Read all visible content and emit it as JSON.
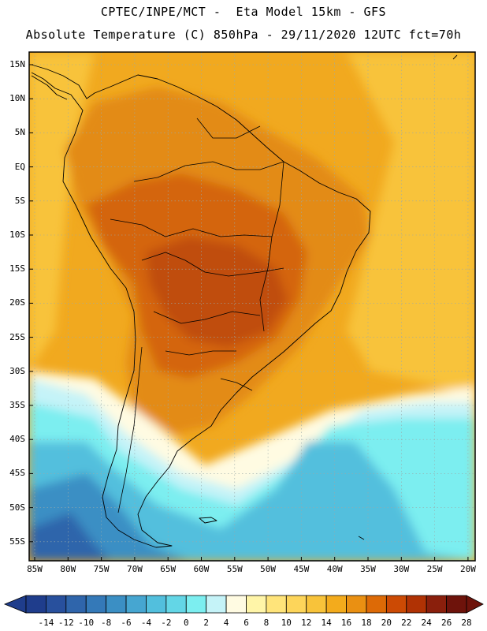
{
  "header": {
    "title_line1": "CPTEC/INPE/MCT -  Eta Model 15km - GFS",
    "title_line2": "Absolute Temperature (C) 850hPa - 29/11/2020 12UTC fct=70h"
  },
  "map": {
    "lat_labels": [
      "15N",
      "10N",
      "5N",
      "EQ",
      "5S",
      "10S",
      "15S",
      "20S",
      "25S",
      "30S",
      "35S",
      "40S",
      "45S",
      "50S",
      "55S"
    ],
    "lon_labels": [
      "85W",
      "80W",
      "75W",
      "70W",
      "65W",
      "60W",
      "55W",
      "50W",
      "45W",
      "40W",
      "35W",
      "30W",
      "25W",
      "20W"
    ]
  },
  "colorbar": {
    "labels": [
      "-14",
      "-12",
      "-10",
      "-8",
      "-6",
      "-4",
      "-2",
      "0",
      "2",
      "4",
      "6",
      "8",
      "10",
      "12",
      "14",
      "16",
      "18",
      "20",
      "22",
      "24",
      "26",
      "28"
    ],
    "colors": [
      "#1f3d8c",
      "#28509d",
      "#2f65ab",
      "#3479b8",
      "#3b8fc4",
      "#46a6d1",
      "#52bfdd",
      "#63d6e6",
      "#7ceef0",
      "#c5f3f8",
      "#fffbe2",
      "#fff5a8",
      "#ffe47a",
      "#fdd55a",
      "#f8c33a",
      "#f3ab1c",
      "#ea9012",
      "#dd6a06",
      "#cc4a04",
      "#b03204",
      "#8a1f0c",
      "#6e130b"
    ],
    "min_arrow_color": "#1f3d8c",
    "max_arrow_color": "#6e130b"
  },
  "field_colors": {
    "ocean_tropical": "#f1a91f",
    "ocean_light": "#f8c33a",
    "ocean_yellow": "#fdd55a",
    "land_warm": "#e38b13",
    "land_hot": "#d4650a",
    "land_hottest": "#c04d07",
    "cold_cream": "#fffbe2",
    "cold_pale": "#c5f3f8",
    "cold_cyan": "#7ceef0",
    "cold_mid": "#52bfdd",
    "cold_deep": "#3b8fc4",
    "cold_deeper": "#2f65ab"
  }
}
